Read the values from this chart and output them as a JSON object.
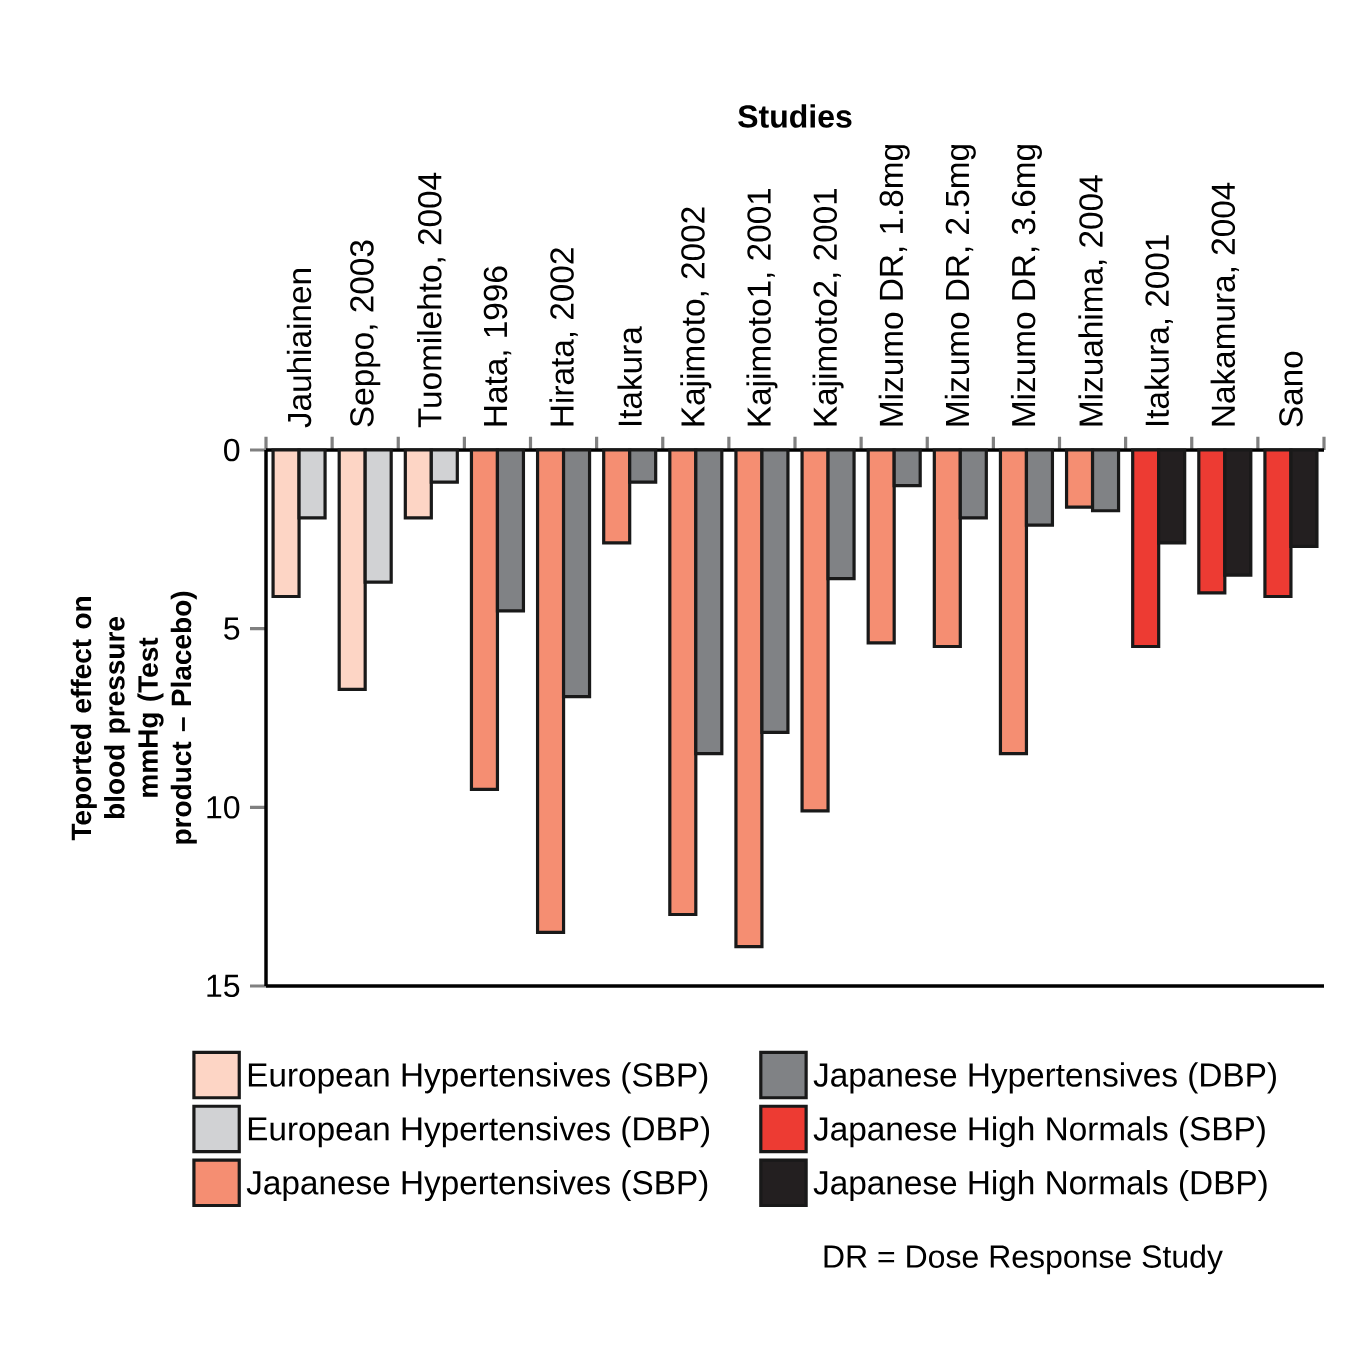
{
  "chart_data": {
    "type": "bar",
    "xlabel": "Studies",
    "ylabel": "Teported effect on blood pressure mmHg (Test product – Placebo)",
    "categories": [
      "Jauhiainen",
      "Seppo, 2003",
      "Tuomilehto, 2004",
      "Hata, 1996",
      "Hirata, 2002",
      "Itakura",
      "Kajimoto, 2002",
      "Kajimoto1, 2001",
      "Kajimoto2, 2001",
      "Mizumo DR, 1.8mg",
      "Mizumo DR, 2.5mg",
      "Mizumo DR, 3.6mg",
      "Mizuahima, 2004",
      "Itakura, 2001",
      "Nakamura, 2004",
      "Sano"
    ],
    "series": [
      {
        "name": "European Hypertensives (SBP)",
        "color": "#fdd5c5",
        "values": [
          4.1,
          6.7,
          1.9,
          null,
          null,
          null,
          null,
          null,
          null,
          null,
          null,
          null,
          null,
          null,
          null,
          null
        ]
      },
      {
        "name": "European Hypertensives (DBP)",
        "color": "#d1d2d4",
        "values": [
          1.9,
          3.7,
          0.9,
          null,
          null,
          null,
          null,
          null,
          null,
          null,
          null,
          null,
          null,
          null,
          null,
          null
        ]
      },
      {
        "name": "Japanese Hypertensives (SBP)",
        "color": "#f58e72",
        "values": [
          null,
          null,
          null,
          9.5,
          13.5,
          2.6,
          13.0,
          13.9,
          10.1,
          5.4,
          5.5,
          8.5,
          1.6,
          null,
          null,
          null
        ]
      },
      {
        "name": "Japanese Hypertensives (DBP)",
        "color": "#808285",
        "values": [
          null,
          null,
          null,
          4.5,
          6.9,
          0.9,
          8.5,
          7.9,
          3.6,
          1.0,
          1.9,
          2.1,
          1.7,
          null,
          null,
          null
        ]
      },
      {
        "name": "Japanese High Normals (SBP)",
        "color": "#ed3b33",
        "values": [
          null,
          null,
          null,
          null,
          null,
          null,
          null,
          null,
          null,
          null,
          null,
          null,
          null,
          5.5,
          4.0,
          4.1
        ]
      },
      {
        "name": "Japanese High Normals (DBP)",
        "color": "#231f20",
        "values": [
          null,
          null,
          null,
          null,
          null,
          null,
          null,
          null,
          null,
          null,
          null,
          null,
          null,
          2.6,
          3.5,
          2.7
        ]
      }
    ],
    "ylim": [
      15,
      0
    ],
    "yticks": [
      0,
      5,
      10,
      15
    ],
    "grid": false,
    "legend": "bottom",
    "annotations": [
      "DR = Dose Response Study"
    ]
  }
}
